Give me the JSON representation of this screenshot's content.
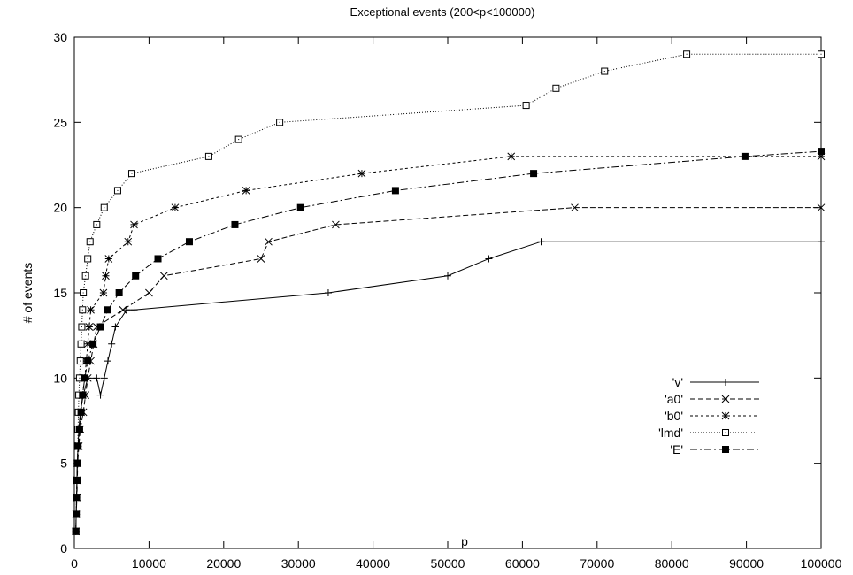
{
  "chart_data": {
    "type": "line",
    "title": "Exceptional events (200<p<100000)",
    "xlabel": "p",
    "ylabel": "# of events",
    "xlim": [
      0,
      100000
    ],
    "ylim": [
      0,
      30
    ],
    "xticks": [
      0,
      10000,
      20000,
      30000,
      40000,
      50000,
      60000,
      70000,
      80000,
      90000,
      100000
    ],
    "yticks": [
      0,
      5,
      10,
      15,
      20,
      25,
      30
    ],
    "grid": false,
    "legend": "right",
    "series": [
      {
        "name": "'v'",
        "marker": "plus",
        "dash": "",
        "points": [
          [
            200,
            1
          ],
          [
            250,
            2
          ],
          [
            300,
            3
          ],
          [
            350,
            4
          ],
          [
            400,
            5
          ],
          [
            500,
            6
          ],
          [
            600,
            7
          ],
          [
            800,
            8
          ],
          [
            1200,
            9
          ],
          [
            1800,
            10
          ],
          [
            3000,
            10
          ],
          [
            3500,
            9
          ],
          [
            4000,
            10
          ],
          [
            4500,
            11
          ],
          [
            5000,
            12
          ],
          [
            5500,
            13
          ],
          [
            7000,
            14
          ],
          [
            8000,
            14
          ],
          [
            34000,
            15
          ],
          [
            50000,
            16
          ],
          [
            55500,
            17
          ],
          [
            62500,
            18
          ],
          [
            100000,
            18
          ]
        ]
      },
      {
        "name": "'a0'",
        "marker": "x",
        "dash": "6,3",
        "points": [
          [
            200,
            1
          ],
          [
            250,
            2
          ],
          [
            350,
            3
          ],
          [
            400,
            4
          ],
          [
            450,
            5
          ],
          [
            600,
            6
          ],
          [
            800,
            7
          ],
          [
            1200,
            8
          ],
          [
            1500,
            9
          ],
          [
            1800,
            10
          ],
          [
            2200,
            11
          ],
          [
            2600,
            12
          ],
          [
            3000,
            13
          ],
          [
            6500,
            14
          ],
          [
            10000,
            15
          ],
          [
            12000,
            16
          ],
          [
            25000,
            17
          ],
          [
            26000,
            18
          ],
          [
            35000,
            19
          ],
          [
            67000,
            20
          ],
          [
            100000,
            20
          ]
        ]
      },
      {
        "name": "'b0'",
        "marker": "star",
        "dash": "3,3",
        "points": [
          [
            200,
            1
          ],
          [
            250,
            2
          ],
          [
            300,
            3
          ],
          [
            350,
            4
          ],
          [
            400,
            5
          ],
          [
            500,
            6
          ],
          [
            700,
            7
          ],
          [
            900,
            8
          ],
          [
            1100,
            9
          ],
          [
            1400,
            10
          ],
          [
            1600,
            11
          ],
          [
            1800,
            12
          ],
          [
            2000,
            13
          ],
          [
            2200,
            14
          ],
          [
            3900,
            15
          ],
          [
            4200,
            16
          ],
          [
            4600,
            17
          ],
          [
            7200,
            18
          ],
          [
            8000,
            19
          ],
          [
            13500,
            20
          ],
          [
            23000,
            21
          ],
          [
            38500,
            22
          ],
          [
            58500,
            23
          ],
          [
            100000,
            23
          ]
        ]
      },
      {
        "name": "'lmd'",
        "marker": "square",
        "dash": "1,2",
        "points": [
          [
            200,
            1
          ],
          [
            250,
            2
          ],
          [
            300,
            3
          ],
          [
            350,
            4
          ],
          [
            400,
            5
          ],
          [
            450,
            6
          ],
          [
            500,
            7
          ],
          [
            550,
            8
          ],
          [
            600,
            9
          ],
          [
            700,
            10
          ],
          [
            800,
            11
          ],
          [
            900,
            12
          ],
          [
            1000,
            13
          ],
          [
            1100,
            14
          ],
          [
            1200,
            15
          ],
          [
            1500,
            16
          ],
          [
            1800,
            17
          ],
          [
            2100,
            18
          ],
          [
            3000,
            19
          ],
          [
            4000,
            20
          ],
          [
            5800,
            21
          ],
          [
            7700,
            22
          ],
          [
            18000,
            23
          ],
          [
            22000,
            24
          ],
          [
            27500,
            25
          ],
          [
            60500,
            26
          ],
          [
            64500,
            27
          ],
          [
            71000,
            28
          ],
          [
            82000,
            29
          ],
          [
            100000,
            29
          ]
        ]
      },
      {
        "name": "'E'",
        "marker": "filled-square",
        "dash": "8,3,2,3",
        "points": [
          [
            200,
            1
          ],
          [
            250,
            2
          ],
          [
            300,
            3
          ],
          [
            350,
            4
          ],
          [
            400,
            5
          ],
          [
            500,
            6
          ],
          [
            700,
            7
          ],
          [
            900,
            8
          ],
          [
            1100,
            9
          ],
          [
            1400,
            10
          ],
          [
            1800,
            11
          ],
          [
            2500,
            12
          ],
          [
            3500,
            13
          ],
          [
            4500,
            14
          ],
          [
            6000,
            15
          ],
          [
            8200,
            16
          ],
          [
            11200,
            17
          ],
          [
            15400,
            18
          ],
          [
            21500,
            19
          ],
          [
            30300,
            20
          ],
          [
            43000,
            21
          ],
          [
            61500,
            22
          ],
          [
            89800,
            23
          ],
          [
            100000,
            23.3
          ]
        ]
      }
    ]
  }
}
